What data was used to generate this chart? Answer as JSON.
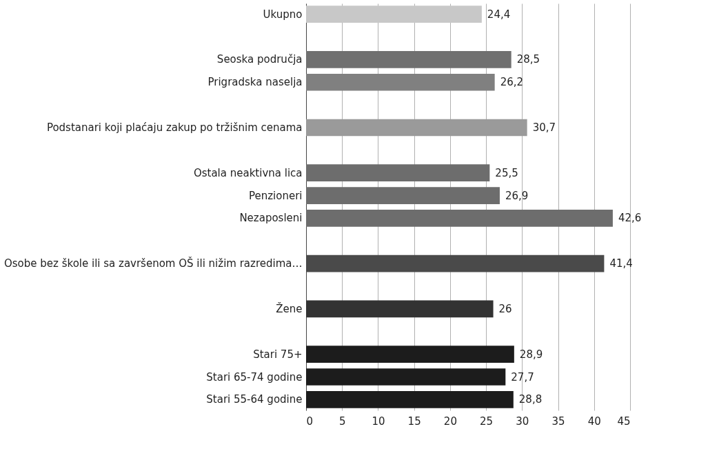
{
  "chart_data": {
    "type": "bar",
    "orientation": "horizontal",
    "categories": [
      "Ukupno",
      null,
      "Seoska područja",
      "Prigradska naselja",
      null,
      "Podstanari koji plaćaju zakup po tržišnim cenama",
      null,
      "Ostala neaktivna lica",
      "Penzioneri",
      "Nezaposleni",
      null,
      "Osobe bez škole ili sa završenom OŠ ili nižim razredima…",
      null,
      "Žene ",
      null,
      "Stari 75+",
      "Stari 65-74 godine",
      "Stari 55-64 godine"
    ],
    "values": [
      24.4,
      null,
      28.5,
      26.2,
      null,
      30.7,
      null,
      25.5,
      26.9,
      42.6,
      null,
      41.4,
      null,
      26,
      null,
      28.9,
      27.7,
      28.8
    ],
    "value_labels": [
      "24,4",
      null,
      "28,5",
      "26,2",
      null,
      "30,7",
      null,
      "25,5",
      "26,9",
      "42,6",
      null,
      "41,4",
      null,
      "26",
      null,
      "28,9",
      "27,7",
      "28,8"
    ],
    "colors": [
      "#c8c8c8",
      null,
      "#707070",
      "#808080",
      null,
      "#9a9a9a",
      null,
      "#6d6d6d",
      "#6d6d6d",
      "#6d6d6d",
      null,
      "#4a4a4a",
      null,
      "#333333",
      null,
      "#1c1c1c",
      "#1c1c1c",
      "#1c1c1c"
    ],
    "xlim": [
      0,
      45
    ],
    "xticks": [
      0,
      5,
      10,
      15,
      20,
      25,
      30,
      35,
      40,
      45
    ],
    "grid": "x"
  }
}
